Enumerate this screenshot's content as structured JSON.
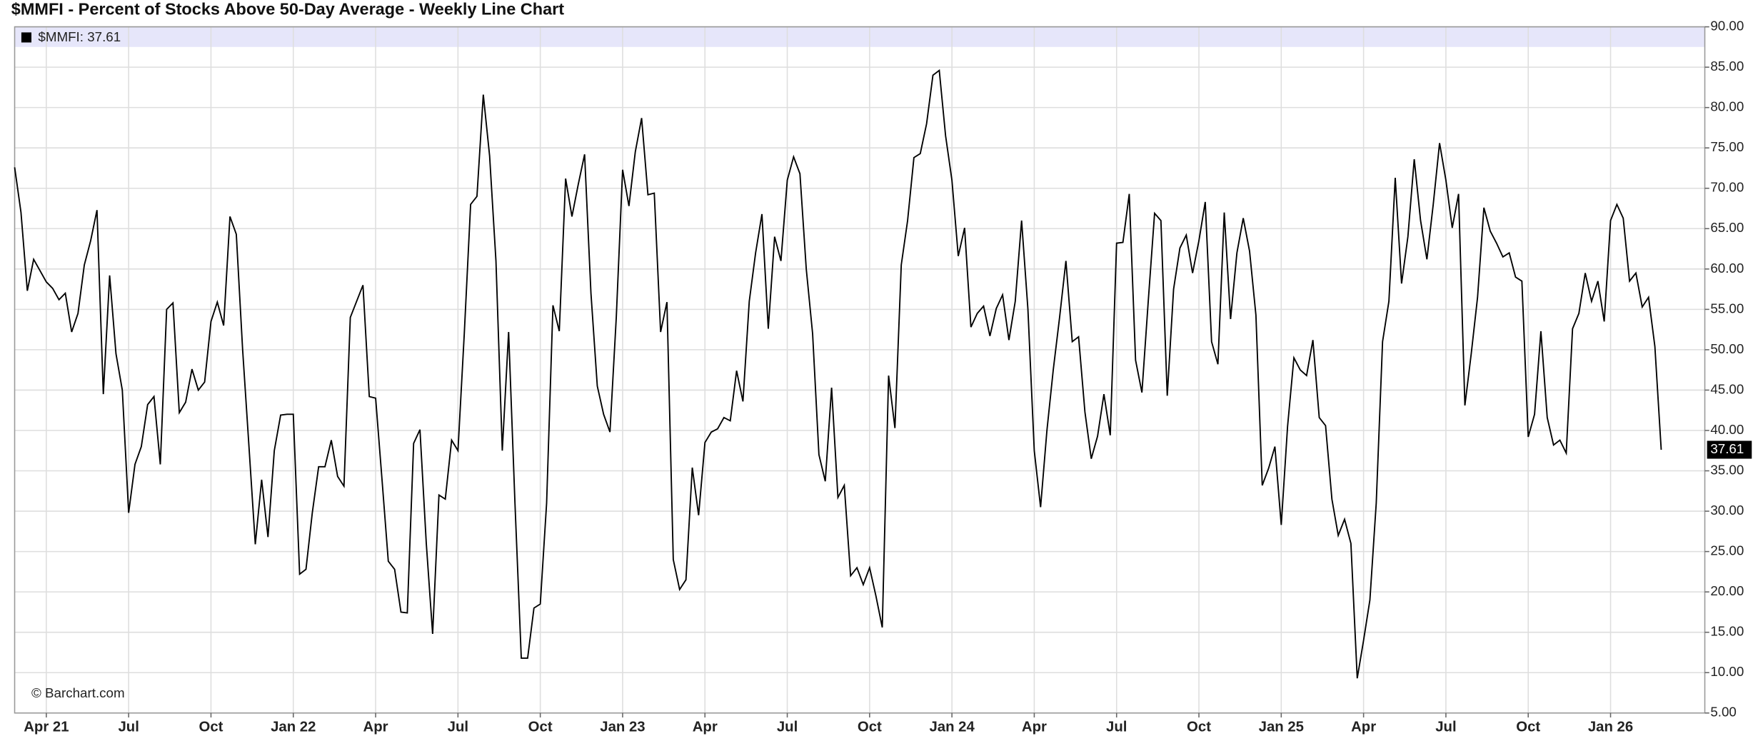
{
  "chart_data": {
    "type": "line",
    "title": "$MMFI - Percent of Stocks Above 50-Day Average - Weekly Line Chart",
    "watermark": "© Barchart.com",
    "grid": true,
    "categories": [
      null,
      null,
      null,
      null,
      null,
      "Apr 21",
      null,
      null,
      null,
      null,
      null,
      null,
      null,
      null,
      null,
      null,
      null,
      null,
      "Jul",
      null,
      null,
      null,
      null,
      null,
      null,
      null,
      null,
      null,
      null,
      null,
      null,
      "Oct",
      null,
      null,
      null,
      null,
      null,
      null,
      null,
      null,
      null,
      null,
      null,
      null,
      "Jan 22",
      null,
      null,
      null,
      null,
      null,
      null,
      null,
      null,
      null,
      null,
      null,
      null,
      "Apr",
      null,
      null,
      null,
      null,
      null,
      null,
      null,
      null,
      null,
      null,
      null,
      null,
      "Jul",
      null,
      null,
      null,
      null,
      null,
      null,
      null,
      null,
      null,
      null,
      null,
      null,
      "Oct",
      null,
      null,
      null,
      null,
      null,
      null,
      null,
      null,
      null,
      null,
      null,
      null,
      "Jan 23",
      null,
      null,
      null,
      null,
      null,
      null,
      null,
      null,
      null,
      null,
      null,
      null,
      "Apr",
      null,
      null,
      null,
      null,
      null,
      null,
      null,
      null,
      null,
      null,
      null,
      null,
      "Jul",
      null,
      null,
      null,
      null,
      null,
      null,
      null,
      null,
      null,
      null,
      null,
      null,
      "Oct",
      null,
      null,
      null,
      null,
      null,
      null,
      null,
      null,
      null,
      null,
      null,
      null,
      "Jan 24",
      null,
      null,
      null,
      null,
      null,
      null,
      null,
      null,
      null,
      null,
      null,
      null,
      "Apr",
      null,
      null,
      null,
      null,
      null,
      null,
      null,
      null,
      null,
      null,
      null,
      null,
      "Jul",
      null,
      null,
      null,
      null,
      null,
      null,
      null,
      null,
      null,
      null,
      null,
      null,
      "Oct",
      null,
      null,
      null,
      null,
      null,
      null,
      null,
      null,
      null,
      null,
      null,
      null,
      "Jan 25",
      null,
      null,
      null,
      null,
      null,
      null,
      null,
      null,
      null,
      null,
      null,
      null,
      "Apr",
      null,
      null,
      null,
      null,
      null,
      null,
      null,
      null,
      null,
      null,
      null,
      null,
      "Jul",
      null,
      null,
      null,
      null,
      null,
      null,
      null,
      null,
      null,
      null,
      null,
      null,
      "Oct",
      null,
      null,
      null,
      null,
      null,
      null,
      null,
      null,
      null,
      null,
      null,
      null,
      "Jan 26",
      null,
      null,
      null,
      null,
      null,
      null,
      null,
      null
    ],
    "series": [
      {
        "name": "$MMFI: 37.61",
        "color": "#000000",
        "values": [
          72.6,
          67,
          57.3,
          61.2,
          59.8,
          58.4,
          57.6,
          56.2,
          57,
          52.2,
          54.5,
          60.5,
          63.5,
          67.3,
          44.5,
          59.2,
          49.5,
          45,
          29.8,
          35.8,
          38,
          43.2,
          44.2,
          35.8,
          55,
          55.8,
          42.2,
          43.5,
          47.6,
          45,
          46,
          53.5,
          55.9,
          53,
          66.5,
          64.3,
          50,
          38,
          25.9,
          33.9,
          26.8,
          37.5,
          41.9,
          42,
          42,
          22.2,
          22.8,
          29.8,
          35.5,
          35.5,
          38.8,
          34.3,
          33.1,
          54,
          56,
          58,
          44.2,
          44,
          34,
          23.8,
          22.8,
          17.5,
          17.4,
          38.4,
          40.1,
          26,
          14.8,
          32,
          31.5,
          38.8,
          37.5,
          52,
          68,
          69,
          81.6,
          74,
          61,
          37.5,
          52.2,
          31,
          11.8,
          11.8,
          18,
          18.5,
          31,
          55.5,
          52.3,
          71.2,
          66.5,
          70.5,
          74.2,
          57,
          45.5,
          42,
          39.8,
          54,
          72.3,
          67.8,
          74.5,
          78.7,
          69.2,
          69.4,
          52.2,
          55.9,
          24,
          20.3,
          21.5,
          35.4,
          29.5,
          38.5,
          39.8,
          40.2,
          41.6,
          41.2,
          47.4,
          43.6,
          56,
          62,
          66.8,
          52.6,
          64,
          61,
          71,
          73.9,
          71.8,
          60,
          52,
          37,
          33.7,
          45.3,
          31.7,
          33.2,
          22,
          23,
          20.9,
          23,
          19.5,
          15.6,
          46.8,
          40.3,
          60.5,
          66,
          73.8,
          74.3,
          78,
          84,
          84.6,
          76.5,
          71,
          61.6,
          65.1,
          52.8,
          54.5,
          55.4,
          51.7,
          55.1,
          56.8,
          51.2,
          56,
          66,
          55,
          37.5,
          30.5,
          40,
          47.5,
          54,
          61,
          51,
          51.6,
          42.3,
          36.5,
          39.3,
          44.5,
          39.4,
          63.2,
          63.3,
          69.3,
          48.7,
          44.7,
          56,
          66.9,
          66,
          44.3,
          57.5,
          62.6,
          64.2,
          59.5,
          63.5,
          68.3,
          51,
          48.2,
          67,
          53.8,
          62,
          66.3,
          62.2,
          54.3,
          33.2,
          35.3,
          38,
          28.3,
          40.5,
          49,
          47.5,
          46.8,
          51.2,
          41.6,
          40.6,
          31.5,
          27,
          29,
          26,
          9.3,
          14,
          19,
          31,
          51,
          56,
          71.3,
          58.2,
          64,
          73.6,
          66,
          61.2,
          68,
          75.6,
          71,
          65.1,
          69.3,
          43.1,
          49.5,
          56.5,
          67.6,
          64.7,
          63.2,
          61.5,
          62,
          59,
          58.5,
          39.2,
          42,
          52.3,
          41.6,
          38.2,
          38.8,
          37.2,
          52.6,
          54.5,
          59.5,
          56,
          58.5,
          53.5,
          66,
          68,
          66.3,
          58.5,
          59.5,
          55.3,
          56.5,
          50.4,
          37.61
        ]
      }
    ],
    "ylim": [
      5,
      90
    ],
    "yticks": [
      {
        "value": 5,
        "label": "5.00"
      },
      {
        "value": 10,
        "label": "10.00"
      },
      {
        "value": 15,
        "label": "15.00"
      },
      {
        "value": 20,
        "label": "20.00"
      },
      {
        "value": 25,
        "label": "25.00"
      },
      {
        "value": 30,
        "label": "30.00"
      },
      {
        "value": 35,
        "label": "35.00"
      },
      {
        "value": 40,
        "label": "40.00"
      },
      {
        "value": 45,
        "label": "45.00"
      },
      {
        "value": 50,
        "label": "50.00"
      },
      {
        "value": 55,
        "label": "55.00"
      },
      {
        "value": 60,
        "label": "60.00"
      },
      {
        "value": 65,
        "label": "65.00"
      },
      {
        "value": 70,
        "label": "70.00"
      },
      {
        "value": 75,
        "label": "75.00"
      },
      {
        "value": 80,
        "label": "80.00"
      },
      {
        "value": 85,
        "label": "85.00"
      },
      {
        "value": 90,
        "label": "90.00"
      }
    ]
  }
}
